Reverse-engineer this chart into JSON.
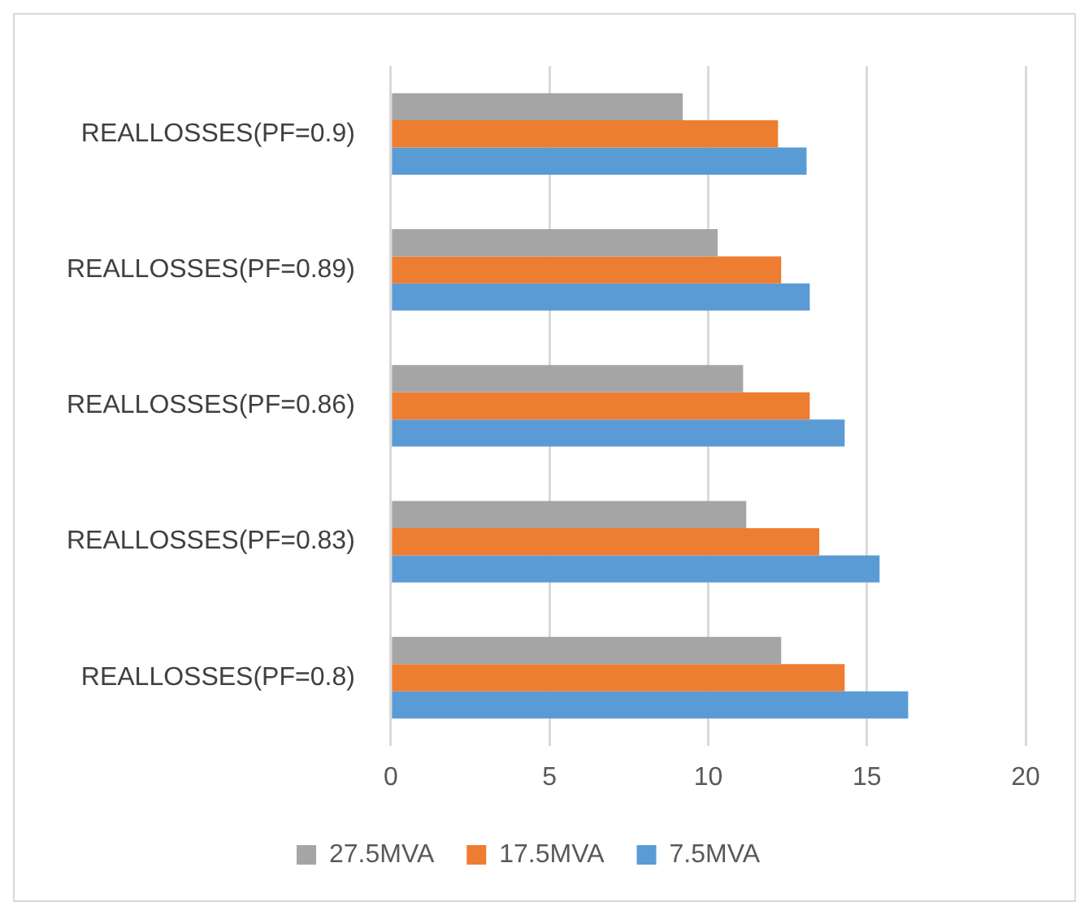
{
  "chart_data": {
    "type": "bar",
    "orientation": "horizontal",
    "categories": [
      "REALLOSSES(PF=0.9)",
      "REALLOSSES(PF=0.89)",
      "REALLOSSES(PF=0.86)",
      "REALLOSSES(PF=0.83)",
      "REALLOSSES(PF=0.8)"
    ],
    "series": [
      {
        "name": "27.5MVA",
        "color": "#a5a5a5",
        "values": [
          9.2,
          10.3,
          11.1,
          11.2,
          12.3
        ]
      },
      {
        "name": "17.5MVA",
        "color": "#ed7d31",
        "values": [
          12.2,
          12.3,
          13.2,
          13.5,
          14.3
        ]
      },
      {
        "name": "7.5MVA",
        "color": "#5b9bd5",
        "values": [
          13.1,
          13.2,
          14.3,
          15.4,
          16.3
        ]
      }
    ],
    "xlim": [
      0,
      20
    ],
    "xticks": [
      0,
      5,
      10,
      15,
      20
    ],
    "grid": "x",
    "legend": "bottom"
  }
}
